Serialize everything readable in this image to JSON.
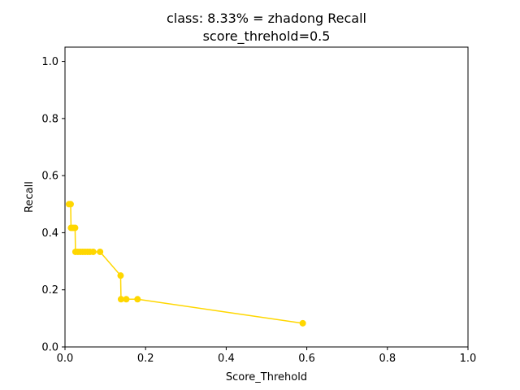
{
  "chart_data": {
    "type": "line",
    "title": "class: 8.33% = zhadong Recall",
    "subtitle": "score_threhold=0.5",
    "xlabel": "Score_Threhold",
    "ylabel": "Recall",
    "xlim": [
      0,
      1.0
    ],
    "ylim": [
      0,
      1.05
    ],
    "grid": false,
    "legend": "none",
    "color": "#FFD700",
    "x_ticks": [
      "0.0",
      "0.2",
      "0.4",
      "0.6",
      "0.8",
      "1.0"
    ],
    "y_ticks": [
      "0.0",
      "0.2",
      "0.4",
      "0.6",
      "0.8",
      "1.0"
    ],
    "series": [
      {
        "points": [
          {
            "x": 0.01,
            "y": 0.5
          },
          {
            "x": 0.014,
            "y": 0.5
          },
          {
            "x": 0.015,
            "y": 0.417
          },
          {
            "x": 0.02,
            "y": 0.417
          },
          {
            "x": 0.025,
            "y": 0.417
          },
          {
            "x": 0.026,
            "y": 0.333
          },
          {
            "x": 0.032,
            "y": 0.333
          },
          {
            "x": 0.038,
            "y": 0.333
          },
          {
            "x": 0.044,
            "y": 0.333
          },
          {
            "x": 0.05,
            "y": 0.333
          },
          {
            "x": 0.056,
            "y": 0.333
          },
          {
            "x": 0.062,
            "y": 0.333
          },
          {
            "x": 0.07,
            "y": 0.333
          },
          {
            "x": 0.087,
            "y": 0.333
          },
          {
            "x": 0.138,
            "y": 0.25
          },
          {
            "x": 0.139,
            "y": 0.167
          },
          {
            "x": 0.152,
            "y": 0.167
          },
          {
            "x": 0.18,
            "y": 0.167
          },
          {
            "x": 0.59,
            "y": 0.083
          }
        ]
      }
    ]
  }
}
